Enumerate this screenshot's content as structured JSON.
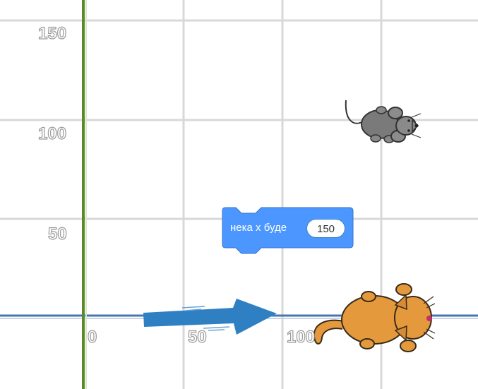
{
  "stage": {
    "grid_lines": {
      "vertical": [
        0,
        50,
        100,
        150
      ],
      "horizontal": [
        0,
        50,
        100,
        150
      ]
    },
    "x_axis_ticks": [
      "0",
      "50",
      "100"
    ],
    "y_axis_ticks": [
      "150",
      "100",
      "50"
    ],
    "colors": {
      "grid": "#d6d6d6",
      "x_axis": "#4a76b0",
      "y_axis": "#5a8a2a",
      "arrow": "#2f80c3",
      "block": "#4c97ff",
      "cat": "#e49a3c",
      "mouse": "#7a7a7a"
    }
  },
  "sprites": [
    {
      "name": "mouse-sprite",
      "costume": "mouse"
    },
    {
      "name": "cat-sprite",
      "costume": "cat"
    }
  ],
  "motion_arrow": {
    "icon": "arrow-right-icon"
  },
  "code_block": {
    "label": "нека x буде",
    "value": "150"
  }
}
